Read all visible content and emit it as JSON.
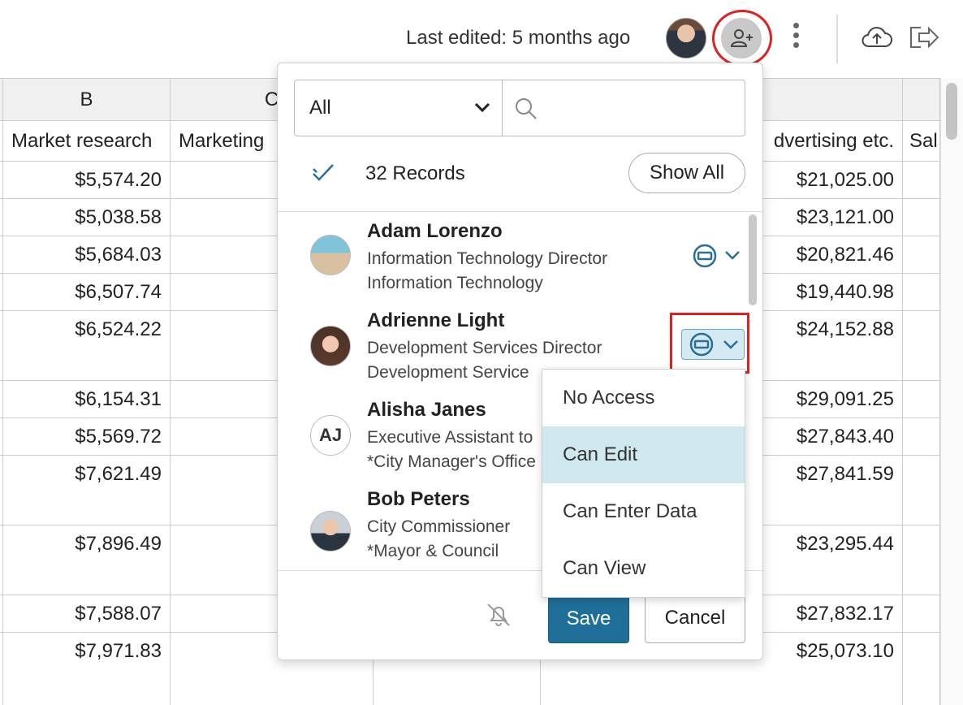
{
  "topbar": {
    "last_edited": "Last edited: 5 months ago"
  },
  "sheet": {
    "columns": [
      {
        "letter": "",
        "field": ""
      },
      {
        "letter": "B",
        "field": "Market research"
      },
      {
        "letter": "C",
        "field": "Marketing"
      },
      {
        "letter": "",
        "field": ""
      },
      {
        "letter": "",
        "field": "dvertising etc."
      },
      {
        "letter": "",
        "field": "Sal"
      }
    ],
    "col_b_values": [
      "$5,574.20",
      "$5,038.58",
      "$5,684.03",
      "$6,507.74",
      "$6,524.22",
      "$6,154.31",
      "$5,569.72",
      "$7,621.49",
      "$7,896.49",
      "$7,588.07",
      "$7,971.83"
    ],
    "col_e_values": [
      "$21,025.00",
      "$23,121.00",
      "$20,821.46",
      "$19,440.98",
      "$24,152.88",
      "$29,091.25",
      "$27,843.40",
      "$27,841.59",
      "$23,295.44",
      "$27,832.17",
      "$25,073.10"
    ]
  },
  "share_panel": {
    "filter_selected": "All",
    "search_placeholder": "",
    "records_label": "32 Records",
    "show_all_label": "Show All",
    "users": [
      {
        "name": "Adam Lorenzo",
        "title": "Information Technology Director",
        "dept": "Information Technology",
        "avatar": "beach-photo"
      },
      {
        "name": "Adrienne Light",
        "title": "Development Services Director",
        "dept": "Development Service",
        "avatar": "woman-photo"
      },
      {
        "name": "Alisha Janes",
        "title": "Executive Assistant to",
        "dept": "*City Manager's Office",
        "initials": "AJ"
      },
      {
        "name": "Bob Peters",
        "title": "City Commissioner",
        "dept": "*Mayor & Council",
        "avatar": "man-photo"
      }
    ],
    "save_label": "Save",
    "cancel_label": "Cancel"
  },
  "access_menu": {
    "options": [
      "No Access",
      "Can Edit",
      "Can Enter Data",
      "Can View"
    ],
    "selected": "Can Edit"
  },
  "colors": {
    "accent": "#1f6f9a",
    "highlight": "#e02020",
    "selected_bg": "#cfe8ef"
  }
}
